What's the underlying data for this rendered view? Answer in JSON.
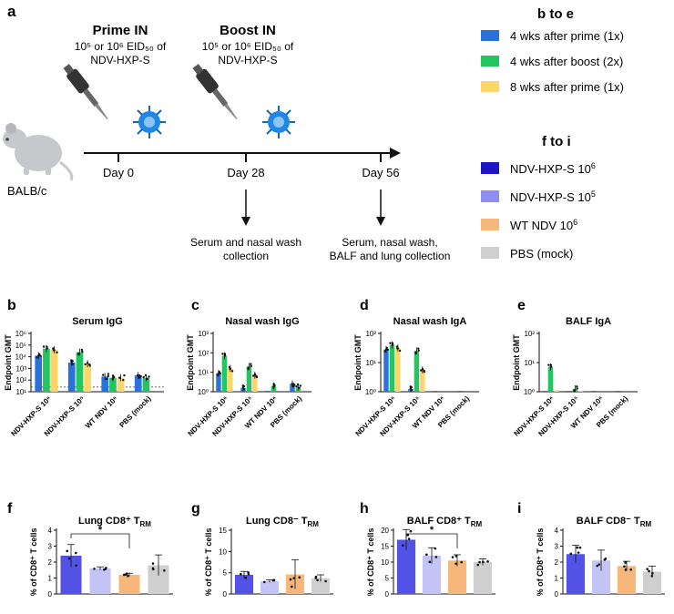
{
  "panel_labels": {
    "a": "a",
    "b": "b",
    "c": "c",
    "d": "d",
    "e": "e",
    "f": "f",
    "g": "g",
    "h": "h",
    "i": "i"
  },
  "schematic": {
    "prime_title": "Prime IN",
    "prime_dose": "10⁵ or 10⁶ EID₅₀ of",
    "prime_vaccine": "NDV-HXP-S",
    "boost_title": "Boost IN",
    "boost_dose": "10⁵ or 10⁶ EID₅₀ of",
    "boost_vaccine": "NDV-HXP-S",
    "mouse_label": "BALB/c",
    "days": [
      "Day 0",
      "Day 28",
      "Day 56"
    ],
    "collection_28": [
      "Serum and nasal wash",
      "collection"
    ],
    "collection_56": [
      "Serum, nasal wash,",
      "BALF and lung collection"
    ]
  },
  "legend_be": {
    "title": "b to e",
    "items": [
      {
        "label": "4 wks after prime (1x)",
        "color": "#2a72d9"
      },
      {
        "label": "4 wks after boost (2x)",
        "color": "#22c55e"
      },
      {
        "label": "8 wks after prime (1x)",
        "color": "#fcd668"
      }
    ]
  },
  "legend_fi": {
    "title": "f to i",
    "items": [
      {
        "label": "NDV-HXP-S 10",
        "sup": "6",
        "color": "#1d16c4"
      },
      {
        "label": "NDV-HXP-S 10",
        "sup": "5",
        "color": "#8e8ef2"
      },
      {
        "label": "WT NDV 10",
        "sup": "6",
        "color": "#f7b77a"
      },
      {
        "label": "PBS (mock)",
        "sup": "",
        "color": "#cfcfcf"
      }
    ]
  },
  "chart_data": [
    {
      "id": "b",
      "type": "bar",
      "title": "Serum IgG",
      "ylabel": "Endpoint GMT",
      "yscale": "log",
      "yticks": [
        {
          "v": 1,
          "t": "10¹"
        },
        {
          "v": 2,
          "t": "10²"
        },
        {
          "v": 3,
          "t": "10³"
        },
        {
          "v": 4,
          "t": "10⁴"
        },
        {
          "v": 5,
          "t": "10⁵"
        },
        {
          "v": 6,
          "t": "10⁶"
        }
      ],
      "ylim": [
        1,
        6
      ],
      "baseline": 1.4,
      "categories": [
        "NDV-HXP-S 10⁶",
        "NDV-HXP-S 10⁵",
        "WT NDV 10⁶",
        "PBS (mock)"
      ],
      "series": [
        {
          "name": "4 wks after prime (1x)",
          "color": "#2a72d9",
          "values": [
            4.1,
            3.5,
            2.3,
            2.4
          ]
        },
        {
          "name": "4 wks after boost (2x)",
          "color": "#22c55e",
          "values": [
            4.7,
            4.4,
            2.2,
            2.2
          ]
        },
        {
          "name": "8 wks after prime (1x)",
          "color": "#fcd668",
          "values": [
            4.6,
            3.4,
            2.2,
            null
          ]
        }
      ]
    },
    {
      "id": "c",
      "type": "bar",
      "title": "Nasal wash IgG",
      "ylabel": "Endpoint GMT",
      "yscale": "log",
      "yticks": [
        {
          "v": 0,
          "t": "10⁰"
        },
        {
          "v": 1,
          "t": "10¹"
        },
        {
          "v": 2,
          "t": "10²"
        },
        {
          "v": 3,
          "t": "10³"
        }
      ],
      "ylim": [
        0,
        3
      ],
      "baseline": null,
      "categories": [
        "NDV-HXP-S 10⁶",
        "NDV-HXP-S 10⁵",
        "WT NDV 10⁶",
        "PBS (mock)"
      ],
      "series": [
        {
          "name": "4 wks after prime (1x)",
          "color": "#2a72d9",
          "values": [
            0.95,
            0.2,
            0.05,
            0.4
          ]
        },
        {
          "name": "4 wks after boost (2x)",
          "color": "#22c55e",
          "values": [
            1.85,
            1.3,
            0.3,
            0.25
          ]
        },
        {
          "name": "8 wks after prime (1x)",
          "color": "#fcd668",
          "values": [
            1.2,
            0.85,
            null,
            null
          ]
        }
      ]
    },
    {
      "id": "d",
      "type": "bar",
      "title": "Nasal wash IgA",
      "ylabel": "Endpoint GMT",
      "yscale": "log",
      "yticks": [
        {
          "v": 0,
          "t": "10⁰"
        },
        {
          "v": 1,
          "t": "10¹"
        },
        {
          "v": 2,
          "t": "10²"
        }
      ],
      "ylim": [
        0,
        2
      ],
      "baseline": null,
      "categories": [
        "NDV-HXP-S 10⁶",
        "NDV-HXP-S 10⁵",
        "WT NDV 10⁶",
        "PBS (mock)"
      ],
      "series": [
        {
          "name": "4 wks after prime (1x)",
          "color": "#2a72d9",
          "values": [
            1.45,
            0.1,
            0.0,
            0.0
          ]
        },
        {
          "name": "4 wks after boost (2x)",
          "color": "#22c55e",
          "values": [
            1.6,
            1.4,
            0.0,
            0.0
          ]
        },
        {
          "name": "8 wks after prime (1x)",
          "color": "#fcd668",
          "values": [
            1.5,
            0.75,
            null,
            null
          ]
        }
      ]
    },
    {
      "id": "e",
      "type": "bar",
      "title": "BALF IgA",
      "ylabel": "Endpoint GMT",
      "yscale": "log",
      "yticks": [
        {
          "v": 0,
          "t": "10⁰"
        },
        {
          "v": 1,
          "t": "10¹"
        },
        {
          "v": 2,
          "t": "10²"
        }
      ],
      "ylim": [
        0,
        2
      ],
      "baseline": null,
      "categories": [
        "NDV-HXP-S 10⁶",
        "NDV-HXP-S 10⁵",
        "WT NDV 10⁶",
        "PBS (mock)"
      ],
      "series": [
        {
          "name": "4 wks after prime (1x)",
          "color": "#2a72d9",
          "values": [
            0.0,
            0.0,
            0.0,
            0.0
          ]
        },
        {
          "name": "4 wks after boost (2x)",
          "color": "#22c55e",
          "values": [
            0.85,
            0.1,
            0.0,
            0.0
          ]
        },
        {
          "name": "8 wks after prime (1x)",
          "color": "#fcd668",
          "values": [
            0.05,
            0.0,
            null,
            null
          ]
        }
      ]
    },
    {
      "id": "f",
      "type": "bar",
      "title": "Lung CD8⁺ T",
      "title_sub": "RM",
      "ylabel": "% of CD8⁺ T cells",
      "yscale": "linear",
      "yticks": [
        {
          "v": 0,
          "t": "0"
        },
        {
          "v": 1,
          "t": "1"
        },
        {
          "v": 2,
          "t": "2"
        },
        {
          "v": 3,
          "t": "3"
        },
        {
          "v": 4,
          "t": "4"
        }
      ],
      "ylim": [
        0,
        4
      ],
      "categories": [
        "NDV-HXP-S 10⁶",
        "NDV-HXP-S 10⁵",
        "WT NDV 10⁶",
        "PBS (mock)"
      ],
      "values": [
        2.4,
        1.6,
        1.2,
        1.8
      ],
      "errors": [
        0.7,
        0.1,
        0.1,
        0.65
      ],
      "colors": [
        "#5252e6",
        "#c3c3f6",
        "#f7b77a",
        "#cfcfcf"
      ],
      "significance": {
        "from": 0,
        "to": 2,
        "label": "*"
      }
    },
    {
      "id": "g",
      "type": "bar",
      "title": "Lung CD8⁻ T",
      "title_sub": "RM",
      "ylabel": "% of CD8⁺ T cells",
      "yscale": "linear",
      "yticks": [
        {
          "v": 0,
          "t": "0"
        },
        {
          "v": 5,
          "t": "5"
        },
        {
          "v": 10,
          "t": "10"
        },
        {
          "v": 15,
          "t": "15"
        }
      ],
      "ylim": [
        0,
        15
      ],
      "categories": [
        "NDV-HXP-S 10⁶",
        "NDV-HXP-S 10⁵",
        "WT NDV 10⁶",
        "PBS (mock)"
      ],
      "values": [
        4.5,
        3.0,
        4.6,
        3.7
      ],
      "errors": [
        0.8,
        0.3,
        3.4,
        0.8
      ],
      "colors": [
        "#5252e6",
        "#c3c3f6",
        "#f7b77a",
        "#cfcfcf"
      ],
      "significance": null
    },
    {
      "id": "h",
      "type": "bar",
      "title": "BALF CD8⁺ T",
      "title_sub": "RM",
      "ylabel": "% of CD8⁺ T cells",
      "yscale": "linear",
      "yticks": [
        {
          "v": 0,
          "t": "0"
        },
        {
          "v": 5,
          "t": "5"
        },
        {
          "v": 10,
          "t": "10"
        },
        {
          "v": 15,
          "t": "15"
        },
        {
          "v": 20,
          "t": "20"
        }
      ],
      "ylim": [
        0,
        20
      ],
      "categories": [
        "NDV-HXP-S 10⁶",
        "NDV-HXP-S 10⁵",
        "WT NDV 10⁶",
        "PBS (mock)"
      ],
      "values": [
        17,
        12,
        10.5,
        10
      ],
      "errors": [
        3.2,
        2.5,
        1.8,
        1.0
      ],
      "colors": [
        "#5252e6",
        "#c3c3f6",
        "#f7b77a",
        "#cfcfcf"
      ],
      "significance": {
        "from": 0,
        "to": 2,
        "label": "*"
      }
    },
    {
      "id": "i",
      "type": "bar",
      "title": "BALF CD8⁻ T",
      "title_sub": "RM",
      "ylabel": "% of CD8⁺ T cells",
      "yscale": "linear",
      "yticks": [
        {
          "v": 0,
          "t": "0"
        },
        {
          "v": 1,
          "t": "1"
        },
        {
          "v": 2,
          "t": "2"
        },
        {
          "v": 3,
          "t": "3"
        },
        {
          "v": 4,
          "t": "4"
        }
      ],
      "ylim": [
        0,
        4
      ],
      "categories": [
        "NDV-HXP-S 10⁶",
        "NDV-HXP-S 10⁵",
        "WT NDV 10⁶",
        "PBS (mock)"
      ],
      "values": [
        2.5,
        2.1,
        1.75,
        1.4
      ],
      "errors": [
        0.55,
        0.65,
        0.3,
        0.35
      ],
      "colors": [
        "#5252e6",
        "#c3c3f6",
        "#f7b77a",
        "#cfcfcf"
      ],
      "significance": null
    }
  ]
}
